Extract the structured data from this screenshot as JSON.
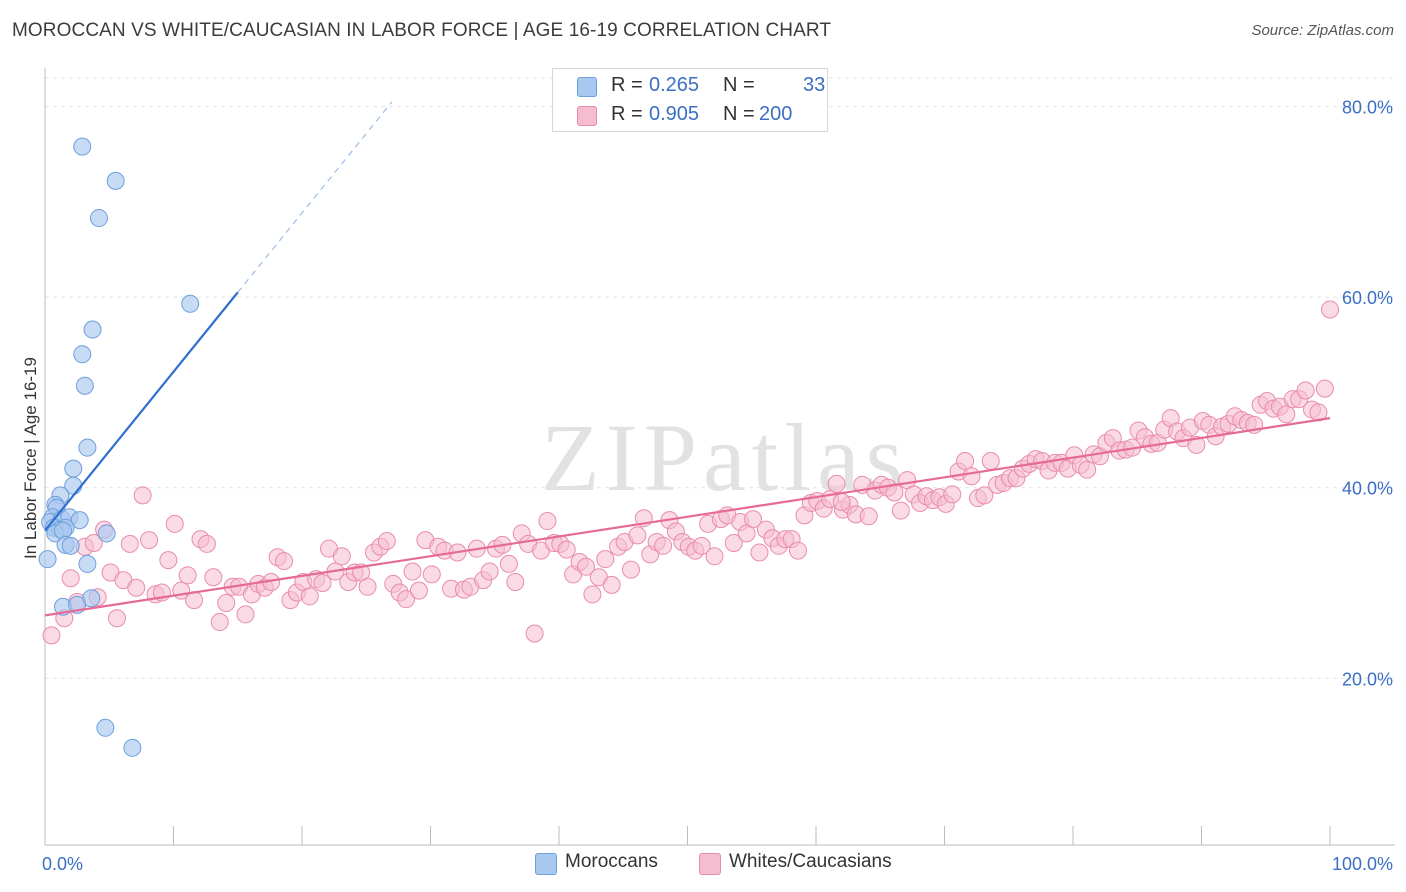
{
  "title": "MOROCCAN VS WHITE/CAUCASIAN IN LABOR FORCE | AGE 16-19 CORRELATION CHART",
  "source": "Source: ZipAtlas.com",
  "watermark": "ZIPatlas",
  "legend": {
    "r_label": "R =",
    "n_label": "N =",
    "rows": [
      {
        "r": "0.265",
        "n": "33"
      },
      {
        "r": "0.905",
        "n": "200"
      }
    ]
  },
  "chart_data": {
    "type": "scatter",
    "title": "MOROCCAN VS WHITE/CAUCASIAN IN LABOR FORCE | AGE 16-19 CORRELATION CHART",
    "xlabel": "",
    "ylabel": "In Labor Force | Age 16-19",
    "xlim": [
      0,
      100
    ],
    "ylim": [
      2.5,
      83
    ],
    "x_tick_labels": [
      "0.0%",
      "100.0%"
    ],
    "y_ticks": [
      20,
      40,
      60,
      80
    ],
    "y_tick_labels": [
      "20.0%",
      "40.0%",
      "60.0%",
      "80.0%"
    ],
    "grid": true,
    "colors": {
      "moroccans_fill": "#a9c8f0",
      "moroccans_stroke": "#6d9fdc",
      "moroccans_line": "#2f6fcf",
      "whites_fill": "#f6bdd0",
      "whites_stroke": "#e98cab",
      "whites_line": "#e66a96",
      "axis_label": "#3b6fc4"
    },
    "series": [
      {
        "name": "Moroccans",
        "r": 0.265,
        "n": 33,
        "trend": {
          "x0": 0.0,
          "y0": 35.5,
          "x1": 15.0,
          "y1": 60.5,
          "dash_to_x": 27.0,
          "dash_to_y": 80.5
        },
        "points": [
          [
            2.9,
            75.8
          ],
          [
            5.5,
            72.2
          ],
          [
            4.2,
            68.3
          ],
          [
            11.3,
            59.3
          ],
          [
            3.7,
            56.6
          ],
          [
            2.9,
            54.0
          ],
          [
            3.1,
            50.7
          ],
          [
            3.3,
            44.2
          ],
          [
            2.2,
            42.0
          ],
          [
            2.2,
            40.2
          ],
          [
            1.2,
            39.2
          ],
          [
            0.8,
            38.2
          ],
          [
            0.9,
            37.9
          ],
          [
            0.6,
            36.9
          ],
          [
            0.4,
            36.4
          ],
          [
            1.3,
            36.7
          ],
          [
            1.9,
            36.9
          ],
          [
            2.7,
            36.6
          ],
          [
            0.7,
            35.8
          ],
          [
            1.2,
            35.6
          ],
          [
            1.6,
            35.8
          ],
          [
            0.8,
            35.2
          ],
          [
            1.4,
            35.5
          ],
          [
            4.8,
            35.2
          ],
          [
            1.6,
            34.0
          ],
          [
            2.0,
            33.9
          ],
          [
            0.2,
            32.5
          ],
          [
            3.3,
            32.0
          ],
          [
            1.4,
            27.5
          ],
          [
            2.5,
            27.7
          ],
          [
            3.6,
            28.4
          ],
          [
            4.7,
            14.8
          ],
          [
            6.8,
            12.7
          ]
        ]
      },
      {
        "name": "Whites/Caucasians",
        "r": 0.905,
        "n": 200,
        "trend": {
          "x0": 0.0,
          "y0": 26.6,
          "x1": 100.0,
          "y1": 47.3
        },
        "points": [
          [
            0.5,
            24.5
          ],
          [
            1.5,
            26.3
          ],
          [
            2.0,
            30.5
          ],
          [
            2.5,
            28.0
          ],
          [
            3.1,
            33.8
          ],
          [
            3.8,
            34.2
          ],
          [
            4.1,
            28.5
          ],
          [
            4.6,
            35.6
          ],
          [
            5.1,
            31.1
          ],
          [
            5.6,
            26.3
          ],
          [
            6.1,
            30.3
          ],
          [
            6.6,
            34.1
          ],
          [
            7.1,
            29.5
          ],
          [
            7.6,
            39.2
          ],
          [
            8.1,
            34.5
          ],
          [
            8.6,
            28.8
          ],
          [
            9.1,
            29.0
          ],
          [
            9.6,
            32.4
          ],
          [
            10.1,
            36.2
          ],
          [
            10.6,
            29.2
          ],
          [
            11.1,
            30.8
          ],
          [
            11.6,
            28.2
          ],
          [
            12.1,
            34.6
          ],
          [
            12.6,
            34.1
          ],
          [
            13.1,
            30.6
          ],
          [
            13.6,
            25.9
          ],
          [
            14.1,
            27.9
          ],
          [
            14.6,
            29.6
          ],
          [
            15.1,
            29.6
          ],
          [
            15.6,
            26.7
          ],
          [
            16.1,
            28.8
          ],
          [
            16.6,
            29.9
          ],
          [
            17.1,
            29.5
          ],
          [
            17.6,
            30.1
          ],
          [
            18.1,
            32.7
          ],
          [
            18.6,
            32.3
          ],
          [
            19.1,
            28.2
          ],
          [
            19.6,
            29.0
          ],
          [
            20.1,
            30.1
          ],
          [
            20.6,
            28.6
          ],
          [
            21.1,
            30.4
          ],
          [
            21.6,
            30.0
          ],
          [
            22.1,
            33.6
          ],
          [
            22.6,
            31.2
          ],
          [
            23.1,
            32.8
          ],
          [
            23.6,
            30.1
          ],
          [
            24.1,
            31.1
          ],
          [
            24.6,
            31.1
          ],
          [
            25.1,
            29.6
          ],
          [
            25.6,
            33.2
          ],
          [
            26.1,
            33.8
          ],
          [
            26.6,
            34.4
          ],
          [
            27.1,
            29.9
          ],
          [
            27.6,
            29.0
          ],
          [
            28.1,
            28.3
          ],
          [
            28.6,
            31.2
          ],
          [
            29.1,
            29.2
          ],
          [
            29.6,
            34.5
          ],
          [
            30.1,
            30.9
          ],
          [
            30.6,
            33.8
          ],
          [
            31.1,
            33.4
          ],
          [
            31.6,
            29.4
          ],
          [
            32.1,
            33.2
          ],
          [
            32.6,
            29.3
          ],
          [
            33.1,
            29.6
          ],
          [
            33.6,
            33.6
          ],
          [
            34.1,
            30.3
          ],
          [
            34.6,
            31.2
          ],
          [
            35.1,
            33.6
          ],
          [
            35.6,
            34.0
          ],
          [
            36.1,
            32.0
          ],
          [
            36.6,
            30.1
          ],
          [
            37.1,
            35.2
          ],
          [
            37.6,
            34.1
          ],
          [
            38.1,
            24.7
          ],
          [
            38.6,
            33.4
          ],
          [
            39.1,
            36.5
          ],
          [
            39.6,
            34.2
          ],
          [
            40.1,
            34.1
          ],
          [
            40.6,
            33.5
          ],
          [
            41.1,
            30.9
          ],
          [
            41.6,
            32.2
          ],
          [
            42.1,
            31.7
          ],
          [
            42.6,
            28.8
          ],
          [
            43.1,
            30.6
          ],
          [
            43.6,
            32.5
          ],
          [
            44.1,
            29.8
          ],
          [
            44.6,
            33.8
          ],
          [
            45.1,
            34.3
          ],
          [
            45.6,
            31.4
          ],
          [
            46.1,
            35.0
          ],
          [
            46.6,
            36.8
          ],
          [
            47.1,
            33.0
          ],
          [
            47.6,
            34.3
          ],
          [
            48.1,
            33.9
          ],
          [
            48.6,
            36.6
          ],
          [
            49.1,
            35.4
          ],
          [
            49.6,
            34.3
          ],
          [
            50.1,
            33.8
          ],
          [
            50.6,
            33.4
          ],
          [
            51.1,
            33.9
          ],
          [
            51.6,
            36.2
          ],
          [
            52.1,
            32.8
          ],
          [
            52.6,
            36.7
          ],
          [
            53.1,
            37.1
          ],
          [
            53.6,
            34.2
          ],
          [
            54.1,
            36.4
          ],
          [
            54.6,
            35.2
          ],
          [
            55.1,
            36.7
          ],
          [
            55.6,
            33.2
          ],
          [
            56.1,
            35.6
          ],
          [
            56.6,
            34.7
          ],
          [
            57.1,
            33.9
          ],
          [
            57.6,
            34.6
          ],
          [
            58.1,
            34.6
          ],
          [
            58.6,
            33.4
          ],
          [
            59.1,
            37.1
          ],
          [
            59.6,
            38.4
          ],
          [
            60.1,
            38.6
          ],
          [
            60.6,
            37.8
          ],
          [
            61.1,
            38.8
          ],
          [
            61.6,
            40.4
          ],
          [
            62.1,
            37.7
          ],
          [
            62.6,
            38.2
          ],
          [
            63.1,
            37.2
          ],
          [
            63.6,
            40.3
          ],
          [
            64.1,
            37.0
          ],
          [
            64.6,
            39.7
          ],
          [
            65.1,
            40.3
          ],
          [
            65.6,
            40.0
          ],
          [
            66.1,
            39.5
          ],
          [
            66.6,
            37.6
          ],
          [
            67.1,
            40.8
          ],
          [
            67.6,
            39.3
          ],
          [
            68.1,
            38.4
          ],
          [
            68.6,
            39.1
          ],
          [
            69.1,
            38.7
          ],
          [
            69.6,
            39.0
          ],
          [
            70.1,
            38.3
          ],
          [
            70.6,
            39.3
          ],
          [
            71.1,
            41.7
          ],
          [
            71.6,
            42.8
          ],
          [
            72.1,
            41.2
          ],
          [
            72.6,
            38.9
          ],
          [
            73.1,
            39.2
          ],
          [
            73.6,
            42.8
          ],
          [
            74.1,
            40.3
          ],
          [
            74.6,
            40.5
          ],
          [
            75.1,
            41.0
          ],
          [
            75.6,
            41.0
          ],
          [
            76.1,
            42.0
          ],
          [
            76.6,
            42.5
          ],
          [
            77.1,
            43.0
          ],
          [
            77.6,
            42.8
          ],
          [
            78.1,
            41.8
          ],
          [
            78.6,
            42.6
          ],
          [
            79.1,
            42.6
          ],
          [
            79.6,
            42.0
          ],
          [
            80.1,
            43.4
          ],
          [
            80.6,
            42.4
          ],
          [
            81.1,
            41.9
          ],
          [
            81.6,
            43.5
          ],
          [
            82.1,
            43.3
          ],
          [
            82.6,
            44.7
          ],
          [
            83.1,
            45.2
          ],
          [
            83.6,
            43.9
          ],
          [
            84.1,
            44.0
          ],
          [
            84.6,
            44.2
          ],
          [
            85.1,
            46.0
          ],
          [
            85.6,
            45.3
          ],
          [
            86.1,
            44.6
          ],
          [
            86.6,
            44.7
          ],
          [
            87.1,
            46.1
          ],
          [
            87.6,
            47.3
          ],
          [
            88.1,
            45.9
          ],
          [
            88.6,
            45.2
          ],
          [
            89.1,
            46.3
          ],
          [
            89.6,
            44.5
          ],
          [
            90.1,
            47.0
          ],
          [
            90.6,
            46.6
          ],
          [
            91.1,
            45.4
          ],
          [
            91.6,
            46.4
          ],
          [
            92.1,
            46.7
          ],
          [
            92.6,
            47.5
          ],
          [
            93.1,
            47.1
          ],
          [
            93.6,
            46.8
          ],
          [
            94.1,
            46.6
          ],
          [
            94.6,
            48.7
          ],
          [
            95.1,
            49.1
          ],
          [
            95.6,
            48.3
          ],
          [
            96.1,
            48.5
          ],
          [
            96.6,
            47.7
          ],
          [
            97.1,
            49.3
          ],
          [
            97.6,
            49.3
          ],
          [
            98.1,
            50.2
          ],
          [
            98.6,
            48.2
          ],
          [
            99.1,
            47.9
          ],
          [
            99.6,
            50.4
          ],
          [
            100.0,
            58.7
          ],
          [
            62.0,
            38.5
          ]
        ]
      }
    ]
  },
  "bottom_legend": [
    {
      "label": "Moroccans"
    },
    {
      "label": "Whites/Caucasians"
    }
  ]
}
